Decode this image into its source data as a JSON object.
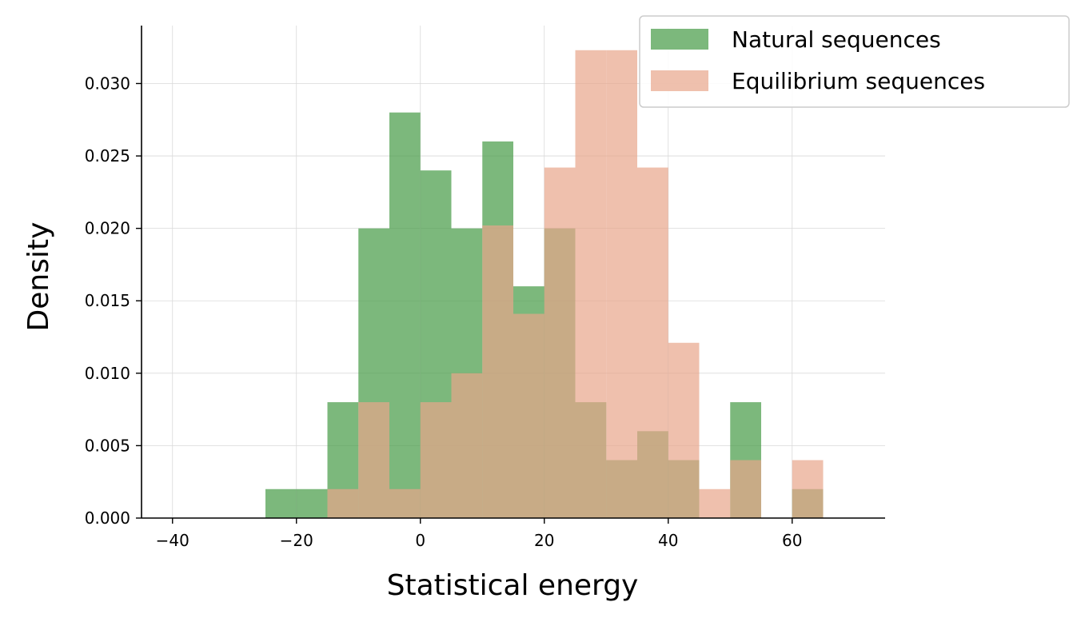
{
  "chart_data": {
    "type": "histogram",
    "title": "",
    "xlabel": "Statistical energy",
    "ylabel": "Density",
    "xlim": [
      -45,
      75
    ],
    "ylim": [
      0,
      0.034
    ],
    "grid": true,
    "legend_position": "top-right",
    "x_ticks": [
      -40,
      -20,
      0,
      20,
      40,
      60
    ],
    "x_tick_labels": [
      "−40",
      "−20",
      "0",
      "20",
      "40",
      "60"
    ],
    "y_ticks": [
      0,
      0.005,
      0.01,
      0.015,
      0.02,
      0.025,
      0.03
    ],
    "y_tick_labels": [
      "0.000",
      "0.005",
      "0.010",
      "0.015",
      "0.020",
      "0.025",
      "0.030"
    ],
    "bin_width": 5,
    "series": [
      {
        "name": "Natural sequences",
        "color": "#4a9d4a",
        "opacity": 0.72,
        "bin_starts": [
          -25,
          -20,
          -15,
          -10,
          -5,
          0,
          5,
          10,
          15,
          20,
          25,
          30,
          35,
          40,
          45,
          50,
          55,
          60
        ],
        "values": [
          0.002,
          0.002,
          0.008,
          0.02,
          0.028,
          0.024,
          0.02,
          0.026,
          0.016,
          0.02,
          0.008,
          0.004,
          0.006,
          0.004,
          0,
          0.008,
          0,
          0.002
        ]
      },
      {
        "name": "Equilibrium sequences",
        "color": "#e8a58a",
        "opacity": 0.7,
        "bin_starts": [
          -25,
          -20,
          -15,
          -10,
          -5,
          0,
          5,
          10,
          15,
          20,
          25,
          30,
          35,
          40,
          45,
          50,
          55,
          60
        ],
        "values": [
          0,
          0,
          0.002,
          0.008,
          0.002,
          0.008,
          0.01,
          0.0202,
          0.0141,
          0.0242,
          0.0323,
          0.0323,
          0.0242,
          0.0121,
          0.002,
          0.004,
          0,
          0.004
        ]
      }
    ]
  }
}
